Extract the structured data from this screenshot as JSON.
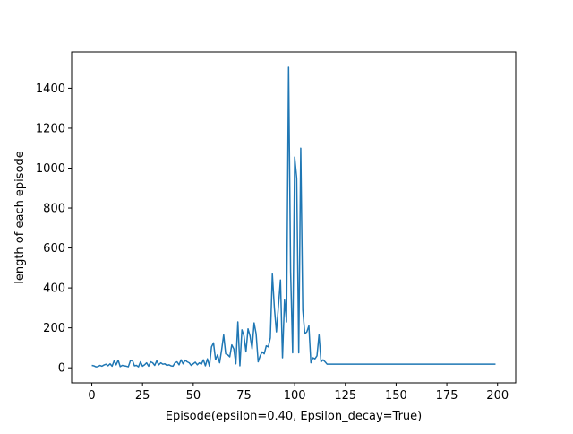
{
  "chart_data": {
    "type": "line",
    "title": "",
    "xlabel": "Episode(epsilon=0.40, Epsilon_decay=True)",
    "ylabel": "length of each episode",
    "xlim": [
      -9.95,
      208.95
    ],
    "ylim": [
      -75.5,
      1581.5
    ],
    "xticks": [
      0,
      25,
      50,
      75,
      100,
      125,
      150,
      175,
      200
    ],
    "yticks": [
      0,
      200,
      400,
      600,
      800,
      1000,
      1200,
      1400
    ],
    "grid": false,
    "legend": "none",
    "series": [
      {
        "color": "#1f77b4",
        "x": [
          0,
          1,
          2,
          3,
          4,
          5,
          6,
          7,
          8,
          9,
          10,
          11,
          12,
          13,
          14,
          15,
          16,
          17,
          18,
          19,
          20,
          21,
          22,
          23,
          24,
          25,
          26,
          27,
          28,
          29,
          30,
          31,
          32,
          33,
          34,
          35,
          36,
          37,
          38,
          39,
          40,
          41,
          42,
          43,
          44,
          45,
          46,
          47,
          48,
          49,
          50,
          51,
          52,
          53,
          54,
          55,
          56,
          57,
          58,
          59,
          60,
          61,
          62,
          63,
          64,
          65,
          66,
          67,
          68,
          69,
          70,
          71,
          72,
          73,
          74,
          75,
          76,
          77,
          78,
          79,
          80,
          81,
          82,
          83,
          84,
          85,
          86,
          87,
          88,
          89,
          90,
          91,
          92,
          93,
          94,
          95,
          96,
          97,
          98,
          99,
          100,
          101,
          102,
          103,
          104,
          105,
          106,
          107,
          108,
          109,
          110,
          111,
          112,
          113,
          114,
          115,
          116,
          117,
          118,
          119,
          120,
          199
        ],
        "values": [
          12,
          10,
          5,
          6,
          12,
          8,
          14,
          18,
          10,
          20,
          8,
          35,
          15,
          38,
          6,
          12,
          10,
          8,
          5,
          35,
          38,
          10,
          12,
          5,
          30,
          8,
          15,
          25,
          8,
          30,
          25,
          12,
          35,
          15,
          25,
          18,
          20,
          12,
          15,
          10,
          8,
          25,
          30,
          15,
          40,
          20,
          38,
          30,
          25,
          12,
          20,
          28,
          15,
          25,
          18,
          40,
          10,
          45,
          8,
          105,
          125,
          40,
          65,
          25,
          90,
          165,
          70,
          65,
          55,
          115,
          95,
          20,
          230,
          10,
          190,
          160,
          80,
          195,
          160,
          95,
          225,
          170,
          30,
          60,
          80,
          70,
          110,
          105,
          150,
          470,
          300,
          180,
          310,
          440,
          50,
          340,
          230,
          1505,
          480,
          75,
          1055,
          950,
          75,
          1100,
          290,
          170,
          180,
          210,
          25,
          50,
          45,
          60,
          165,
          30,
          40,
          30,
          18,
          18,
          18,
          18,
          18,
          18
        ]
      }
    ]
  }
}
